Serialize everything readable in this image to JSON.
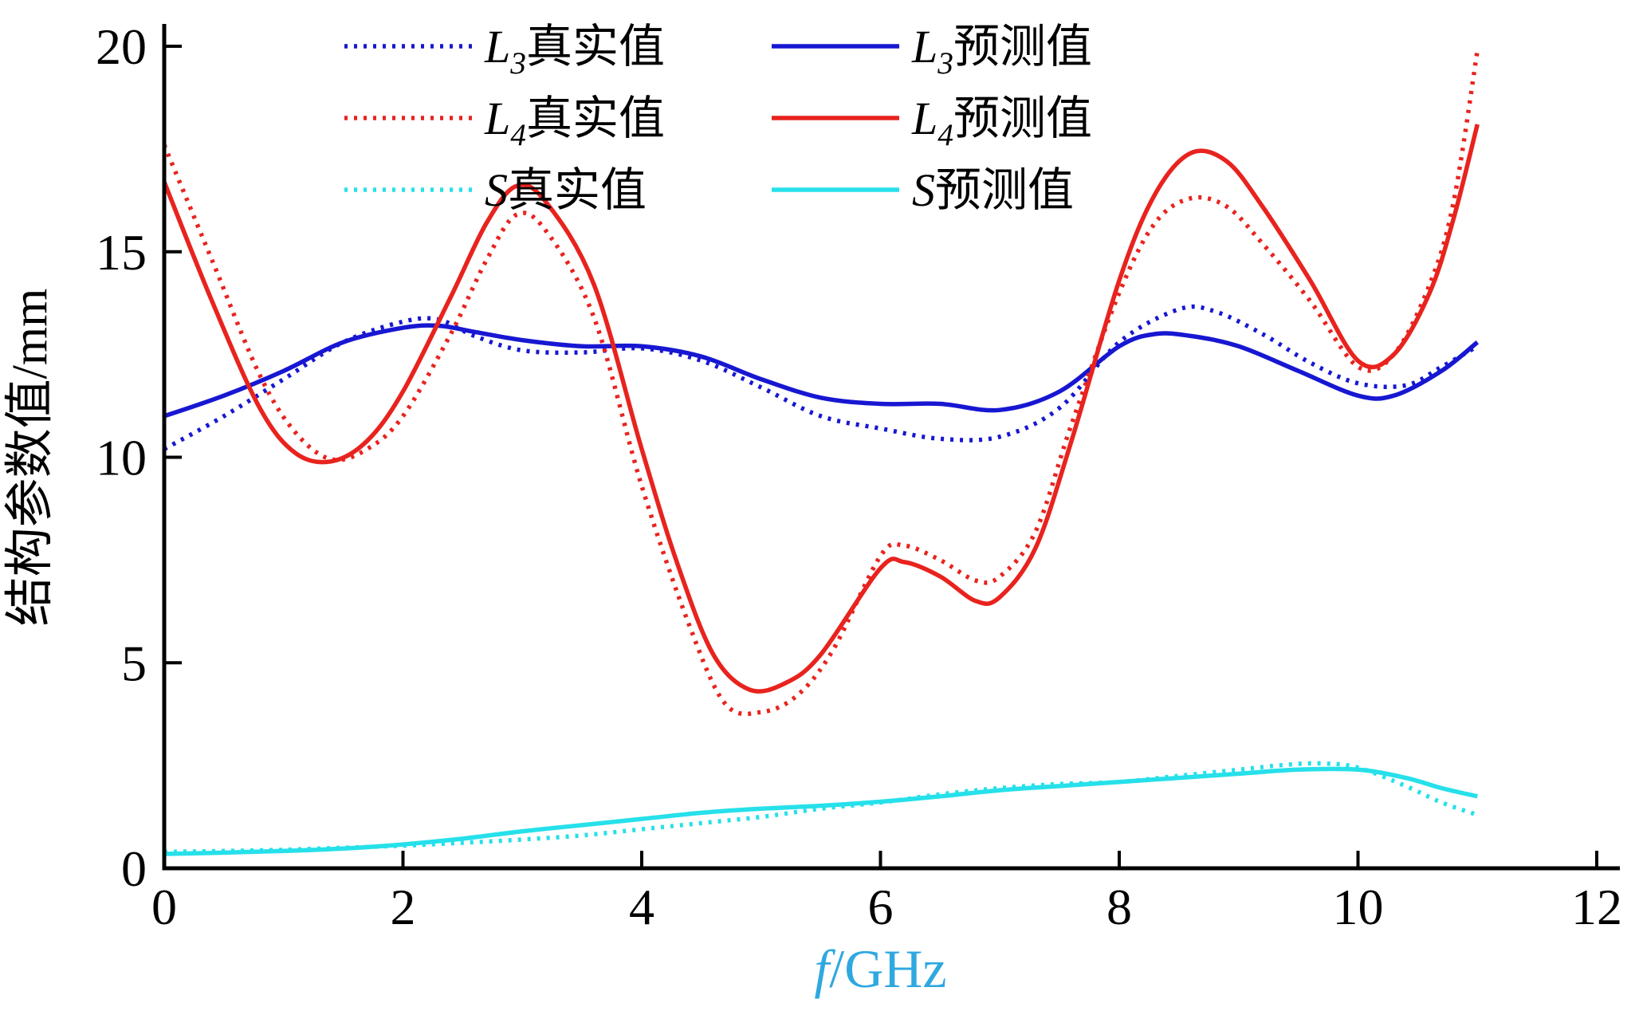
{
  "chart_data": {
    "type": "line",
    "title": "",
    "xlabel": {
      "var": "f",
      "rest": "/GHz",
      "color": "#2fa8e0"
    },
    "ylabel": "结构参数值/mm",
    "xlim": [
      0,
      12
    ],
    "ylim": [
      0,
      20
    ],
    "xticks": [
      0,
      2,
      4,
      6,
      8,
      10,
      12
    ],
    "yticks": [
      0,
      5,
      10,
      15,
      20
    ],
    "grid": false,
    "legend_position": "top-center",
    "axis_color": "#000000",
    "series": [
      {
        "name": "L3真实值",
        "var": "L",
        "sub": "3",
        "rest": "真实值",
        "color": "#1717d2",
        "style": "dotted",
        "x": [
          0,
          0.5,
          1,
          1.5,
          2,
          2.3,
          2.6,
          3,
          3.5,
          4,
          4.5,
          5,
          5.5,
          6,
          6.5,
          7,
          7.5,
          8,
          8.5,
          8.8,
          9.2,
          9.6,
          10,
          10.4,
          10.7,
          11
        ],
        "y": [
          10.2,
          11.0,
          11.9,
          12.8,
          13.3,
          13.35,
          12.95,
          12.6,
          12.55,
          12.65,
          12.35,
          11.7,
          11.0,
          10.7,
          10.45,
          10.5,
          11.2,
          12.8,
          13.6,
          13.55,
          13.0,
          12.3,
          11.8,
          11.75,
          12.2,
          12.7
        ]
      },
      {
        "name": "L3预测值",
        "var": "L",
        "sub": "3",
        "rest": "预测值",
        "color": "#1717d2",
        "style": "solid",
        "x": [
          0,
          0.5,
          1,
          1.5,
          2,
          2.3,
          2.6,
          3,
          3.5,
          4,
          4.5,
          5,
          5.5,
          6,
          6.5,
          7,
          7.5,
          8,
          8.3,
          8.6,
          9,
          9.5,
          10,
          10.3,
          10.7,
          11
        ],
        "y": [
          11.0,
          11.5,
          12.1,
          12.8,
          13.15,
          13.2,
          13.05,
          12.85,
          12.7,
          12.7,
          12.45,
          11.9,
          11.45,
          11.3,
          11.3,
          11.15,
          11.6,
          12.7,
          13.0,
          12.95,
          12.7,
          12.1,
          11.5,
          11.5,
          12.1,
          12.8
        ]
      },
      {
        "name": "L4真实值",
        "var": "L",
        "sub": "4",
        "rest": "真实值",
        "color": "#e8231e",
        "style": "dotted",
        "x": [
          0,
          0.4,
          0.8,
          1.1,
          1.4,
          1.7,
          2,
          2.4,
          2.7,
          2.95,
          3.2,
          3.6,
          4,
          4.4,
          4.7,
          5,
          5.3,
          5.6,
          6,
          6.2,
          6.5,
          6.8,
          7,
          7.3,
          7.6,
          8,
          8.3,
          8.6,
          8.9,
          9.2,
          9.6,
          10,
          10.3,
          10.6,
          10.8,
          11
        ],
        "y": [
          17.6,
          14.8,
          12.0,
          10.6,
          9.95,
          10.2,
          11.0,
          13.0,
          14.8,
          15.9,
          15.5,
          13.4,
          9.3,
          5.9,
          4.0,
          3.8,
          4.2,
          5.3,
          7.6,
          7.85,
          7.5,
          7.0,
          7.1,
          8.2,
          10.8,
          14.0,
          15.7,
          16.3,
          16.1,
          15.2,
          13.8,
          12.2,
          12.5,
          14.2,
          16.2,
          19.9
        ]
      },
      {
        "name": "L4预测值",
        "var": "L",
        "sub": "4",
        "rest": "预测值",
        "color": "#e8231e",
        "style": "solid",
        "x": [
          0,
          0.4,
          0.8,
          1.1,
          1.4,
          1.7,
          2,
          2.4,
          2.7,
          2.95,
          3.2,
          3.6,
          4,
          4.3,
          4.6,
          4.9,
          5.2,
          5.5,
          6,
          6.2,
          6.5,
          6.8,
          7,
          7.3,
          7.6,
          8,
          8.3,
          8.6,
          8.9,
          9.2,
          9.6,
          10,
          10.3,
          10.6,
          10.8,
          11
        ],
        "y": [
          16.7,
          13.8,
          11.2,
          10.1,
          9.9,
          10.4,
          11.6,
          13.9,
          15.7,
          16.6,
          16.2,
          14.2,
          10.2,
          7.4,
          5.2,
          4.35,
          4.5,
          5.2,
          7.3,
          7.45,
          7.1,
          6.5,
          6.6,
          7.8,
          10.4,
          14.3,
          16.4,
          17.4,
          17.2,
          16.1,
          14.3,
          12.35,
          12.5,
          14.0,
          15.8,
          18.1
        ]
      },
      {
        "name": "S真实值",
        "var": "S",
        "sub": "",
        "rest": "真实值",
        "color": "#26e0ea",
        "style": "dotted",
        "x": [
          0,
          0.5,
          1,
          1.5,
          2,
          2.5,
          3,
          3.5,
          4,
          4.5,
          5,
          5.5,
          6,
          6.5,
          7,
          7.5,
          8,
          8.5,
          9,
          9.4,
          9.7,
          10,
          10.4,
          10.7,
          11
        ],
        "y": [
          0.4,
          0.42,
          0.45,
          0.5,
          0.55,
          0.62,
          0.7,
          0.8,
          0.95,
          1.1,
          1.25,
          1.45,
          1.6,
          1.8,
          1.95,
          2.05,
          2.1,
          2.25,
          2.4,
          2.52,
          2.55,
          2.45,
          2.0,
          1.6,
          1.3
        ]
      },
      {
        "name": "S预测值",
        "var": "S",
        "sub": "",
        "rest": "预测值",
        "color": "#26e0ea",
        "style": "solid",
        "x": [
          0,
          0.5,
          1,
          1.5,
          2,
          2.5,
          3,
          3.5,
          4,
          4.5,
          5,
          5.5,
          6,
          6.5,
          7,
          7.5,
          8,
          8.5,
          9,
          9.5,
          10,
          10.4,
          10.7,
          11
        ],
        "y": [
          0.35,
          0.38,
          0.42,
          0.48,
          0.58,
          0.72,
          0.9,
          1.05,
          1.2,
          1.35,
          1.45,
          1.52,
          1.62,
          1.75,
          1.9,
          2.0,
          2.1,
          2.2,
          2.3,
          2.4,
          2.4,
          2.2,
          1.95,
          1.75
        ]
      }
    ],
    "legend_rows": [
      [
        0,
        1
      ],
      [
        2,
        3
      ],
      [
        4,
        5
      ]
    ]
  }
}
